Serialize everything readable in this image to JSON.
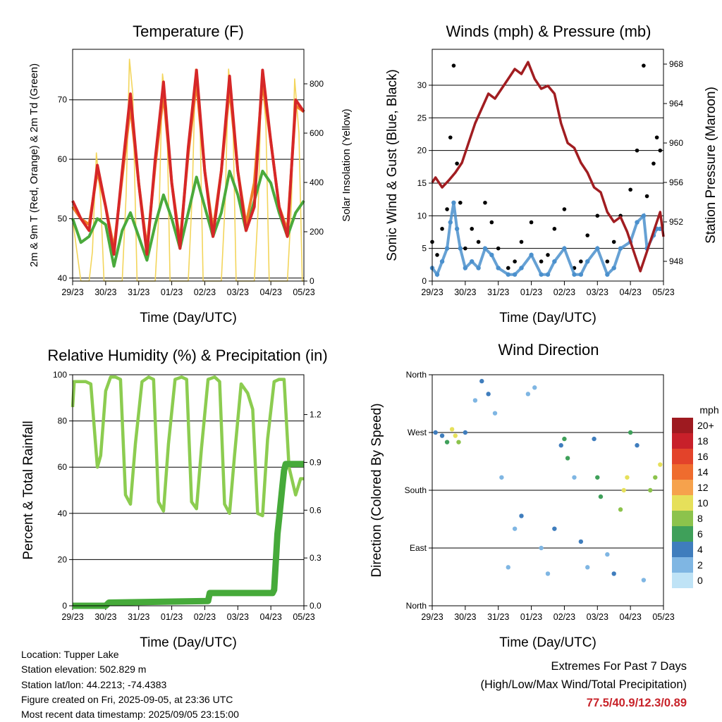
{
  "chart_data": [
    {
      "type": "line",
      "title": "Temperature (F)",
      "xlabel": "Time (Day/UTC)",
      "ylabel": "2m & 9m T (Red, Orange) & 2m Td (Green)",
      "y2label": "Solar Insolation (Yellow)",
      "x_ticks": [
        "29/23",
        "30/23",
        "31/23",
        "01/23",
        "02/23",
        "03/23",
        "04/23",
        "05/23"
      ],
      "y_ticks": [
        40,
        50,
        60,
        70
      ],
      "y2_ticks": [
        0,
        200,
        400,
        600,
        800
      ],
      "ylim": [
        39.5,
        78.5
      ],
      "y2lim": [
        0,
        940
      ],
      "grid": true,
      "series": [
        {
          "name": "2m T",
          "color": "#d62728",
          "x": [
            0,
            0.25,
            0.5,
            0.75,
            1,
            1.25,
            1.5,
            1.75,
            2,
            2.25,
            2.5,
            2.75,
            3,
            3.25,
            3.5,
            3.75,
            4,
            4.25,
            4.5,
            4.75,
            5,
            5.25,
            5.5,
            5.75,
            6,
            6.25,
            6.5,
            6.75,
            7
          ],
          "y": [
            53,
            50,
            48,
            59,
            52,
            44,
            58,
            71,
            56,
            44,
            60,
            73,
            56,
            45,
            62,
            75,
            58,
            47,
            58,
            74,
            58,
            48,
            52,
            75,
            63,
            52,
            47,
            70,
            68
          ]
        },
        {
          "name": "9m T",
          "color": "#f07f28",
          "x": [
            0,
            0.25,
            0.5,
            0.75,
            1,
            1.25,
            1.5,
            1.75,
            2,
            2.25,
            2.5,
            2.75,
            3,
            3.25,
            3.5,
            3.75,
            4,
            4.25,
            4.5,
            4.75,
            5,
            5.25,
            5.5,
            5.75,
            6,
            6.25,
            6.5,
            6.75,
            7
          ],
          "y": [
            52,
            50,
            49,
            58,
            52,
            45,
            57,
            69,
            56,
            45,
            59,
            71,
            56,
            46,
            61,
            73,
            58,
            48,
            58,
            72,
            58,
            49,
            56,
            73,
            63,
            52,
            48,
            69,
            68
          ]
        },
        {
          "name": "2m Td",
          "color": "#4aaa3c",
          "x": [
            0,
            0.25,
            0.5,
            0.75,
            1,
            1.25,
            1.5,
            1.75,
            2,
            2.25,
            2.5,
            2.75,
            3,
            3.25,
            3.5,
            3.75,
            4,
            4.25,
            4.5,
            4.75,
            5,
            5.25,
            5.5,
            5.75,
            6,
            6.25,
            6.5,
            6.75,
            7
          ],
          "y": [
            50,
            46,
            47,
            50,
            49,
            42,
            48,
            51,
            47,
            43,
            49,
            54,
            50,
            45,
            51,
            57,
            52,
            47,
            51,
            58,
            54,
            48,
            53,
            58,
            56,
            51,
            47,
            51,
            53
          ]
        },
        {
          "name": "Solar Insolation",
          "color": "#f3d55b",
          "axis": "y2",
          "x": [
            0,
            0.25,
            0.5,
            0.6,
            0.72,
            0.85,
            0.95,
            1.25,
            1.5,
            1.62,
            1.72,
            1.82,
            1.95,
            2.25,
            2.5,
            2.62,
            2.72,
            2.85,
            2.95,
            3.25,
            3.5,
            3.62,
            3.72,
            3.85,
            3.95,
            4.25,
            4.5,
            4.62,
            4.72,
            4.85,
            4.95,
            5.25,
            5.5,
            5.62,
            5.72,
            5.85,
            5.95,
            6.25,
            6.5,
            6.62,
            6.72,
            6.85,
            6.95,
            7
          ],
          "y": [
            250,
            0,
            0,
            120,
            520,
            330,
            0,
            0,
            0,
            350,
            900,
            760,
            0,
            0,
            0,
            300,
            840,
            700,
            0,
            0,
            0,
            350,
            860,
            680,
            0,
            0,
            0,
            330,
            860,
            660,
            0,
            0,
            0,
            300,
            840,
            640,
            0,
            0,
            0,
            300,
            820,
            600,
            0,
            0
          ]
        }
      ]
    },
    {
      "type": "scatter",
      "title": "Winds (mph) & Pressure (mb)",
      "xlabel": "Time (Day/UTC)",
      "ylabel": "Sonic Wind & Gust (Blue, Black)",
      "y2label": "Station Pressure (Maroon)",
      "x_ticks": [
        "29/23",
        "30/23",
        "31/23",
        "01/23",
        "02/23",
        "03/23",
        "04/23",
        "05/23"
      ],
      "y_ticks": [
        0,
        5,
        10,
        15,
        20,
        25,
        30
      ],
      "y2_ticks": [
        948,
        952,
        956,
        960,
        964,
        968
      ],
      "ylim": [
        0,
        35.5
      ],
      "y2lim": [
        946,
        969.5
      ],
      "grid": true,
      "series": [
        {
          "name": "Gust",
          "color": "#000000",
          "x": [
            0,
            0.15,
            0.3,
            0.45,
            0.55,
            0.65,
            0.75,
            0.85,
            1,
            1.2,
            1.4,
            1.6,
            1.8,
            2,
            2.3,
            2.5,
            2.7,
            3,
            3.3,
            3.5,
            3.7,
            4,
            4.3,
            4.5,
            4.7,
            5,
            5.3,
            5.5,
            5.7,
            6,
            6.2,
            6.4,
            6.5,
            6.7,
            6.8,
            6.9
          ],
          "y": [
            6,
            4,
            8,
            11,
            22,
            33,
            18,
            12,
            5,
            8,
            6,
            12,
            9,
            5,
            2,
            3,
            6,
            9,
            3,
            4,
            8,
            11,
            2,
            3,
            7,
            10,
            3,
            6,
            10,
            14,
            20,
            33,
            13,
            18,
            22,
            20
          ]
        },
        {
          "name": "Sonic Wind",
          "color": "#4b90cc",
          "x": [
            0,
            0.15,
            0.3,
            0.45,
            0.55,
            0.65,
            0.75,
            0.85,
            1,
            1.2,
            1.4,
            1.6,
            1.8,
            2,
            2.3,
            2.5,
            2.7,
            3,
            3.3,
            3.5,
            3.7,
            4,
            4.3,
            4.5,
            4.7,
            5,
            5.3,
            5.5,
            5.7,
            6,
            6.2,
            6.4,
            6.5,
            6.7,
            6.8,
            6.9
          ],
          "y": [
            2,
            1,
            3,
            5,
            9,
            12,
            8,
            5,
            2,
            3,
            2,
            5,
            4,
            2,
            1,
            1,
            2,
            4,
            1,
            1,
            3,
            5,
            1,
            1,
            3,
            5,
            1,
            2,
            5,
            6,
            9,
            10,
            5,
            7,
            8,
            8
          ]
        },
        {
          "name": "Station Pressure",
          "color": "#a11d21",
          "axis": "y2",
          "x": [
            0,
            0.1,
            0.3,
            0.5,
            0.7,
            0.9,
            1.1,
            1.3,
            1.5,
            1.7,
            1.9,
            2.1,
            2.3,
            2.5,
            2.7,
            2.9,
            3.1,
            3.3,
            3.5,
            3.7,
            3.9,
            4.1,
            4.3,
            4.5,
            4.7,
            4.9,
            5.1,
            5.3,
            5.5,
            5.7,
            5.9,
            6.1,
            6.3,
            6.5,
            6.7,
            6.9,
            7
          ],
          "y": [
            956,
            956.5,
            955.5,
            956.2,
            957,
            958,
            960,
            962,
            963.5,
            965,
            964.5,
            965.5,
            966.5,
            967.5,
            967,
            968.2,
            966.5,
            965.5,
            965.8,
            965,
            962,
            960,
            959.5,
            958,
            957,
            955.5,
            955,
            953,
            952,
            952.5,
            951,
            949,
            947,
            949,
            951,
            953,
            950.5
          ]
        }
      ]
    },
    {
      "type": "line",
      "title": "Relative Humidity (%) & Precipitation (in)",
      "xlabel": "Time (Day/UTC)",
      "ylabel": "Percent & Total Rainfall",
      "x_ticks": [
        "29/23",
        "30/23",
        "31/23",
        "01/23",
        "02/23",
        "03/23",
        "04/23",
        "05/23"
      ],
      "y_ticks": [
        0,
        20,
        40,
        60,
        80,
        100
      ],
      "y2_ticks": [
        0.0,
        0.3,
        0.6,
        0.9,
        1.2
      ],
      "ylim": [
        0,
        100
      ],
      "y2lim": [
        0,
        1.45
      ],
      "grid": true,
      "series": [
        {
          "name": "Relative Humidity",
          "color": "#8ccc50",
          "x": [
            0,
            0.05,
            0.15,
            0.4,
            0.55,
            0.75,
            0.85,
            1,
            1.15,
            1.3,
            1.45,
            1.6,
            1.75,
            1.9,
            2.1,
            2.3,
            2.45,
            2.6,
            2.75,
            2.9,
            3.1,
            3.3,
            3.45,
            3.6,
            3.75,
            3.9,
            4.1,
            4.3,
            4.45,
            4.6,
            4.75,
            4.9,
            5.1,
            5.3,
            5.45,
            5.6,
            5.75,
            5.9,
            6.1,
            6.25,
            6.4,
            6.55,
            6.75,
            6.9,
            7
          ],
          "y": [
            86,
            97,
            97,
            97,
            96,
            60,
            65,
            93,
            99,
            99,
            98,
            48,
            44,
            70,
            97,
            99,
            98,
            45,
            41,
            70,
            98,
            99,
            98,
            45,
            42,
            68,
            98,
            99,
            97,
            44,
            40,
            65,
            96,
            92,
            85,
            40,
            39,
            72,
            97,
            98,
            98,
            60,
            48,
            55,
            55
          ]
        },
        {
          "name": "Total Precipitation",
          "color": "#46aa3a",
          "axis": "y2",
          "x": [
            0,
            1,
            1.1,
            4.1,
            4.15,
            6.05,
            6.1,
            6.2,
            6.25,
            6.35,
            6.4,
            6.45,
            7
          ],
          "y": [
            0,
            0,
            0.02,
            0.03,
            0.08,
            0.08,
            0.1,
            0.45,
            0.55,
            0.75,
            0.85,
            0.89,
            0.89
          ]
        }
      ]
    },
    {
      "type": "scatter",
      "title": "Wind Direction",
      "xlabel": "Time (Day/UTC)",
      "ylabel": "Direction (Colored By Speed)",
      "x_ticks": [
        "29/23",
        "30/23",
        "31/23",
        "01/23",
        "02/23",
        "03/23",
        "04/23",
        "05/23"
      ],
      "y_ticks": [
        "North",
        "East",
        "South",
        "West",
        "North"
      ],
      "y_tick_values": [
        0,
        90,
        180,
        270,
        360
      ],
      "ylim": [
        0,
        360
      ],
      "grid": true,
      "legend_title": "mph",
      "legend_labels": [
        "20+",
        "18",
        "16",
        "14",
        "12",
        "10",
        "8",
        "6",
        "4",
        "2",
        "0"
      ],
      "legend_colors": [
        "#9e1a20",
        "#c8202a",
        "#e3432a",
        "#ef6c2e",
        "#f6a24c",
        "#e6e05a",
        "#8cc34c",
        "#3fa05a",
        "#3f7dbd",
        "#7fb6e3",
        "#bfe3f6"
      ],
      "legend_placement": "right",
      "points": [
        {
          "x": 0.1,
          "y": 270,
          "speed": 4
        },
        {
          "x": 0.3,
          "y": 265,
          "speed": 3
        },
        {
          "x": 0.45,
          "y": 255,
          "speed": 5
        },
        {
          "x": 0.6,
          "y": 275,
          "speed": 9
        },
        {
          "x": 0.7,
          "y": 265,
          "speed": 10
        },
        {
          "x": 0.8,
          "y": 255,
          "speed": 8
        },
        {
          "x": 1.0,
          "y": 270,
          "speed": 3
        },
        {
          "x": 1.3,
          "y": 320,
          "speed": 2
        },
        {
          "x": 1.5,
          "y": 350,
          "speed": 4
        },
        {
          "x": 1.7,
          "y": 330,
          "speed": 4
        },
        {
          "x": 1.9,
          "y": 300,
          "speed": 2
        },
        {
          "x": 2.1,
          "y": 200,
          "speed": 1
        },
        {
          "x": 2.3,
          "y": 60,
          "speed": 2
        },
        {
          "x": 2.5,
          "y": 120,
          "speed": 1
        },
        {
          "x": 2.7,
          "y": 140,
          "speed": 3
        },
        {
          "x": 2.9,
          "y": 330,
          "speed": 2
        },
        {
          "x": 3.1,
          "y": 340,
          "speed": 1
        },
        {
          "x": 3.3,
          "y": 90,
          "speed": 1
        },
        {
          "x": 3.5,
          "y": 50,
          "speed": 2
        },
        {
          "x": 3.7,
          "y": 120,
          "speed": 4
        },
        {
          "x": 3.9,
          "y": 250,
          "speed": 4
        },
        {
          "x": 4.0,
          "y": 260,
          "speed": 6
        },
        {
          "x": 4.1,
          "y": 230,
          "speed": 5
        },
        {
          "x": 4.3,
          "y": 200,
          "speed": 2
        },
        {
          "x": 4.5,
          "y": 100,
          "speed": 3
        },
        {
          "x": 4.7,
          "y": 60,
          "speed": 2
        },
        {
          "x": 4.9,
          "y": 260,
          "speed": 4
        },
        {
          "x": 5.0,
          "y": 200,
          "speed": 5
        },
        {
          "x": 5.1,
          "y": 170,
          "speed": 6
        },
        {
          "x": 5.3,
          "y": 80,
          "speed": 2
        },
        {
          "x": 5.5,
          "y": 50,
          "speed": 3
        },
        {
          "x": 5.7,
          "y": 150,
          "speed": 8
        },
        {
          "x": 5.8,
          "y": 180,
          "speed": 10
        },
        {
          "x": 5.9,
          "y": 200,
          "speed": 9
        },
        {
          "x": 6.0,
          "y": 270,
          "speed": 6
        },
        {
          "x": 6.2,
          "y": 250,
          "speed": 4
        },
        {
          "x": 6.4,
          "y": 40,
          "speed": 2
        },
        {
          "x": 6.6,
          "y": 180,
          "speed": 7
        },
        {
          "x": 6.75,
          "y": 200,
          "speed": 8
        },
        {
          "x": 6.9,
          "y": 220,
          "speed": 9
        }
      ]
    }
  ],
  "info": {
    "location": "Location: Tupper Lake",
    "elevation": "Station elevation: 502.829 m",
    "latlon": "Station lat/lon: 44.2213; -74.4383",
    "created": "Figure created on Fri, 2025-09-05, at 23:36 UTC",
    "recent": "Most recent data timestamp: 2025/09/05 23:15:00"
  },
  "extremes": {
    "title": "Extremes For Past 7 Days",
    "subtitle": "(High/Low/Max Wind/Total Precipitation)",
    "values": "77.5/40.9/12.3/0.89"
  }
}
